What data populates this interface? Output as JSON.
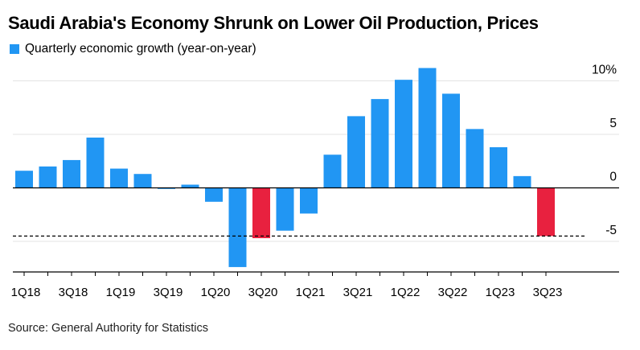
{
  "title": "Saudi Arabia's Economy Shrunk on Lower Oil Production, Prices",
  "source": "Source: General Authority for Statistics",
  "colors": {
    "positive": "#2196f3",
    "highlight": "#e8213f",
    "grid": "#e3e3e3",
    "axis": "#000000"
  },
  "chart_data": {
    "type": "bar",
    "title": "Saudi Arabia's Economy Shrunk on Lower Oil Production, Prices",
    "series": [
      {
        "name": "Quarterly economic growth (year-on-year)",
        "values": [
          1.6,
          2.0,
          2.6,
          4.7,
          1.8,
          1.3,
          -0.1,
          0.3,
          -1.3,
          -7.4,
          -4.7,
          -4.0,
          -2.4,
          3.1,
          6.7,
          8.3,
          10.1,
          11.2,
          8.8,
          5.5,
          3.8,
          1.1,
          -4.5
        ]
      }
    ],
    "categories": [
      "1Q18",
      "2Q18",
      "3Q18",
      "4Q18",
      "1Q19",
      "2Q19",
      "3Q19",
      "4Q19",
      "1Q20",
      "2Q20",
      "3Q20",
      "4Q20",
      "1Q21",
      "2Q21",
      "3Q21",
      "4Q21",
      "1Q22",
      "2Q22",
      "3Q22",
      "4Q22",
      "1Q23",
      "2Q23",
      "3Q23"
    ],
    "highlighted_categories": [
      "3Q20",
      "3Q23"
    ],
    "x_tick_labels": [
      "1Q18",
      "3Q18",
      "1Q19",
      "3Q19",
      "1Q20",
      "3Q20",
      "1Q21",
      "3Q21",
      "1Q22",
      "3Q22",
      "1Q23",
      "3Q23"
    ],
    "y_ticks": [
      {
        "value": 10,
        "label": "10%"
      },
      {
        "value": 5,
        "label": "5"
      },
      {
        "value": 0,
        "label": "0"
      },
      {
        "value": -5,
        "label": "-5"
      }
    ],
    "reference_line": {
      "value": -4.5,
      "style": "dashed"
    },
    "ylim": [
      -7.4,
      11.2
    ],
    "y_axis_position": "right",
    "grid": true,
    "legend_position": "top-left"
  }
}
